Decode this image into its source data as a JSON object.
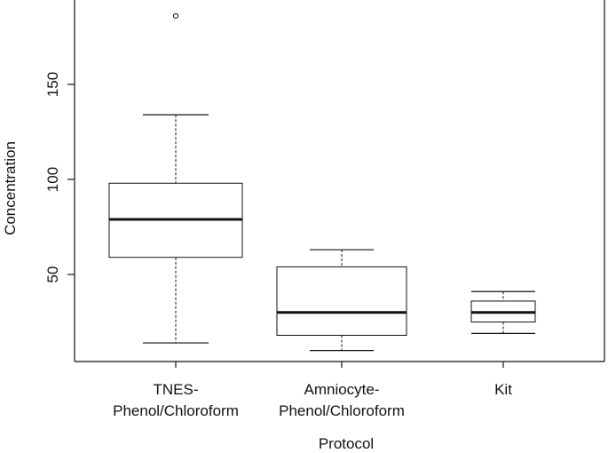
{
  "chart_data": {
    "type": "boxplot",
    "xlabel": "Protocol",
    "ylabel": "Concentration",
    "yticks": [
      50,
      100,
      150
    ],
    "ylim": [
      5,
      195
    ],
    "grid": false,
    "categories": [
      {
        "lines": [
          "TNES-",
          "Phenol/Chloroform"
        ]
      },
      {
        "lines": [
          "Amniocyte-",
          "Phenol/Chloroform"
        ]
      },
      {
        "lines": [
          "Kit"
        ]
      }
    ],
    "boxes": [
      {
        "whisker_low": 14,
        "q1": 59,
        "median": 79,
        "q3": 98,
        "whisker_high": 134,
        "outliers": [
          186
        ]
      },
      {
        "whisker_low": 10,
        "q1": 18,
        "median": 30,
        "q3": 54,
        "whisker_high": 63,
        "outliers": []
      },
      {
        "whisker_low": 19,
        "q1": 25,
        "median": 30,
        "q3": 36,
        "whisker_high": 41,
        "outliers": []
      }
    ]
  }
}
